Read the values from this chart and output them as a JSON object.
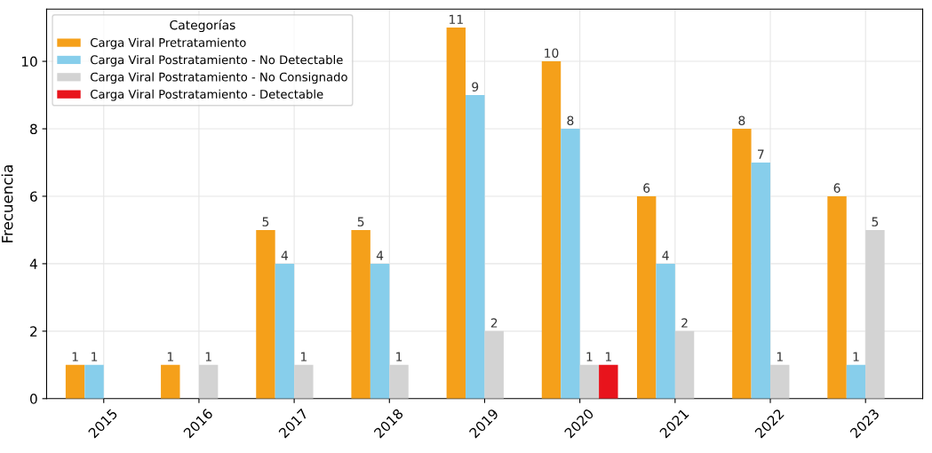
{
  "chart_data": {
    "type": "bar",
    "ylabel": "Frecuencia",
    "legend_title": "Categorías",
    "categories": [
      "2015",
      "2016",
      "2017",
      "2018",
      "2019",
      "2020",
      "2021",
      "2022",
      "2023"
    ],
    "series": [
      {
        "name": "Carga Viral Pretratamiento",
        "color": "#f5a01a",
        "values": [
          1,
          1,
          5,
          5,
          11,
          10,
          6,
          8,
          6
        ]
      },
      {
        "name": "Carga Viral Postratamiento - No Detectable",
        "color": "#87ceeb",
        "values": [
          1,
          null,
          4,
          4,
          9,
          8,
          4,
          7,
          1
        ]
      },
      {
        "name": "Carga Viral Postratamiento - No Consignado",
        "color": "#d3d3d3",
        "values": [
          null,
          1,
          1,
          1,
          2,
          1,
          2,
          1,
          5
        ]
      },
      {
        "name": "Carga Viral Postratamiento - Detectable",
        "color": "#e8141c",
        "values": [
          null,
          null,
          null,
          null,
          null,
          1,
          null,
          null,
          null
        ]
      }
    ],
    "ylim": [
      0,
      11.55
    ],
    "yticks": [
      0,
      2,
      4,
      6,
      8,
      10
    ],
    "grid": true,
    "legend": "top left",
    "data_labels": true
  }
}
